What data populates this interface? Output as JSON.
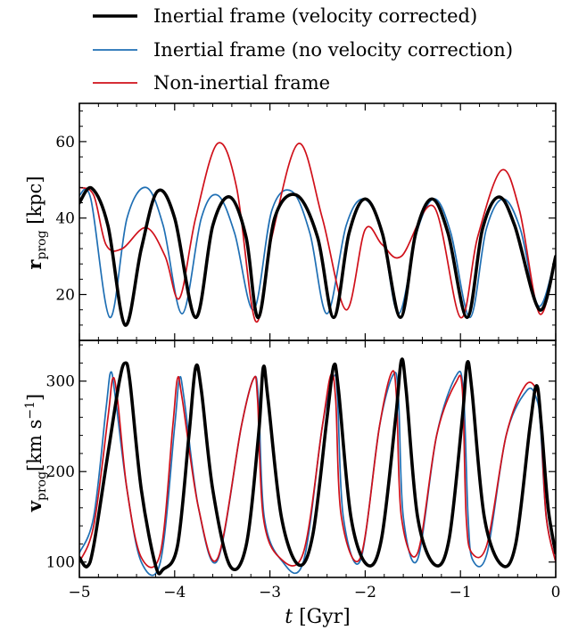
{
  "chart_data": [
    {
      "type": "line",
      "panel": "top",
      "ylabel": {
        "main": "r",
        "sub": "prog",
        "unit": "[kpc]"
      },
      "xlim": [
        -5,
        0
      ],
      "ylim": [
        8,
        70
      ],
      "yticks": [
        20,
        40,
        60
      ],
      "series": [
        {
          "name": "Inertial frame (velocity corrected)",
          "color": "#000000",
          "x": [
            -5.0,
            -4.87,
            -4.7,
            -4.52,
            -4.35,
            -4.18,
            -4.0,
            -3.78,
            -3.6,
            -3.42,
            -3.25,
            -3.12,
            -2.95,
            -2.72,
            -2.5,
            -2.33,
            -2.17,
            -2.0,
            -1.82,
            -1.63,
            -1.47,
            -1.3,
            -1.13,
            -0.93,
            -0.77,
            -0.6,
            -0.43,
            -0.17,
            0.0
          ],
          "y": [
            44,
            47.8,
            38,
            12,
            32,
            47,
            40,
            14,
            38,
            45.5,
            35,
            14,
            40,
            46,
            35,
            14,
            36,
            45,
            36,
            14,
            36,
            45,
            36,
            14,
            37,
            45.5,
            38,
            16,
            30
          ]
        },
        {
          "name": "Inertial frame (no velocity correction)",
          "color": "#1f6fb4",
          "x": [
            -5.0,
            -4.88,
            -4.68,
            -4.5,
            -4.3,
            -4.12,
            -3.92,
            -3.72,
            -3.55,
            -3.37,
            -3.17,
            -2.98,
            -2.77,
            -2.58,
            -2.4,
            -2.2,
            -2.02,
            -1.83,
            -1.65,
            -1.45,
            -1.27,
            -1.1,
            -0.9,
            -0.73,
            -0.55,
            -0.37,
            -0.18,
            0.0
          ],
          "y": [
            46,
            45,
            14,
            40,
            48,
            38,
            15,
            40,
            46,
            36,
            16,
            42,
            47,
            36,
            15,
            38,
            45,
            37,
            15,
            37,
            45,
            36,
            14,
            37,
            45,
            37,
            17,
            30
          ]
        },
        {
          "name": "Non-inertial frame",
          "color": "#d0101a",
          "x": [
            -5.0,
            -4.85,
            -4.72,
            -4.55,
            -4.3,
            -4.1,
            -3.95,
            -3.78,
            -3.55,
            -3.35,
            -3.15,
            -2.98,
            -2.7,
            -2.45,
            -2.2,
            -2.0,
            -1.82,
            -1.62,
            -1.28,
            -1.0,
            -0.82,
            -0.57,
            -0.38,
            -0.17,
            0.0
          ],
          "y": [
            48,
            46,
            33,
            32,
            37.5,
            30,
            19,
            40,
            59.5,
            48,
            13,
            35,
            59.5,
            40,
            16,
            37,
            33,
            30,
            43,
            14,
            35,
            52.5,
            42,
            15,
            30
          ]
        }
      ]
    },
    {
      "type": "line",
      "panel": "bottom",
      "ylabel": {
        "main": "v",
        "sub": "prog",
        "unit": "[km s",
        "unit_sup": "−1",
        "unit_close": "]"
      },
      "xlabel": {
        "var": "t",
        "unit": "[Gyr]"
      },
      "xlim": [
        -5,
        0
      ],
      "ylim": [
        83,
        345
      ],
      "yticks": [
        100,
        200,
        300
      ],
      "xticks": [
        -5,
        -4,
        -3,
        -2,
        -1,
        0
      ],
      "xtick_labels": [
        "−5",
        "−4",
        "−3",
        "−2",
        "−1",
        "0"
      ],
      "series": [
        {
          "name": "Inertial frame (velocity corrected)",
          "color": "#000000",
          "x": [
            -5.0,
            -4.92,
            -4.85,
            -4.7,
            -4.58,
            -4.52,
            -4.47,
            -4.35,
            -4.2,
            -4.12,
            -3.97,
            -3.85,
            -3.78,
            -3.72,
            -3.6,
            -3.42,
            -3.25,
            -3.12,
            -3.07,
            -3.02,
            -2.88,
            -2.7,
            -2.55,
            -2.4,
            -2.33,
            -2.28,
            -2.15,
            -1.98,
            -1.83,
            -1.68,
            -1.62,
            -1.57,
            -1.45,
            -1.27,
            -1.12,
            -0.98,
            -0.93,
            -0.88,
            -0.75,
            -0.57,
            -0.42,
            -0.27,
            -0.2,
            -0.15,
            -0.08,
            0.0
          ],
          "y": [
            105,
            95,
            118,
            220,
            300,
            320,
            300,
            180,
            96,
            92,
            118,
            240,
            315,
            290,
            180,
            96,
            118,
            240,
            315,
            280,
            150,
            97,
            130,
            260,
            317,
            290,
            150,
            97,
            125,
            260,
            323,
            290,
            150,
            97,
            125,
            260,
            320,
            290,
            150,
            97,
            120,
            250,
            295,
            250,
            160,
            110
          ]
        },
        {
          "name": "Inertial frame (no velocity correction)",
          "color": "#1f6fb4",
          "x": [
            -5.0,
            -4.85,
            -4.72,
            -4.67,
            -4.62,
            -4.5,
            -4.35,
            -4.15,
            -4.0,
            -3.95,
            -3.9,
            -3.75,
            -3.55,
            -3.3,
            -3.17,
            -3.12,
            -3.06,
            -2.88,
            -2.65,
            -2.45,
            -2.33,
            -2.29,
            -2.23,
            -2.05,
            -1.85,
            -1.7,
            -1.65,
            -1.6,
            -1.45,
            -1.25,
            -1.05,
            -0.97,
            -0.92,
            -0.87,
            -0.72,
            -0.52,
            -0.3,
            -0.2,
            -0.16,
            -0.1,
            0.0
          ],
          "y": [
            110,
            150,
            270,
            310,
            280,
            180,
            100,
            100,
            250,
            303,
            280,
            160,
            102,
            250,
            303,
            280,
            150,
            102,
            100,
            250,
            305,
            280,
            150,
            102,
            250,
            308,
            280,
            150,
            103,
            240,
            305,
            290,
            150,
            102,
            110,
            240,
            290,
            280,
            250,
            150,
            100
          ]
        },
        {
          "name": "Non-inertial frame",
          "color": "#d0101a",
          "x": [
            -5.0,
            -4.85,
            -4.7,
            -4.65,
            -4.6,
            -4.5,
            -4.35,
            -4.15,
            -4.02,
            -3.97,
            -3.92,
            -3.75,
            -3.55,
            -3.3,
            -3.17,
            -3.13,
            -3.07,
            -2.9,
            -2.65,
            -2.45,
            -2.36,
            -2.31,
            -2.25,
            -2.05,
            -1.85,
            -1.72,
            -1.67,
            -1.62,
            -1.45,
            -1.25,
            -1.05,
            -0.98,
            -0.94,
            -0.88,
            -0.72,
            -0.52,
            -0.32,
            -0.2,
            -0.16,
            -0.1,
            0.0
          ],
          "y": [
            100,
            140,
            260,
            303,
            280,
            180,
            105,
            110,
            250,
            303,
            280,
            160,
            104,
            250,
            303,
            280,
            150,
            105,
            110,
            250,
            307,
            280,
            150,
            105,
            250,
            310,
            280,
            150,
            110,
            240,
            298,
            290,
            150,
            110,
            120,
            240,
            295,
            290,
            260,
            150,
            100
          ]
        }
      ]
    }
  ]
}
